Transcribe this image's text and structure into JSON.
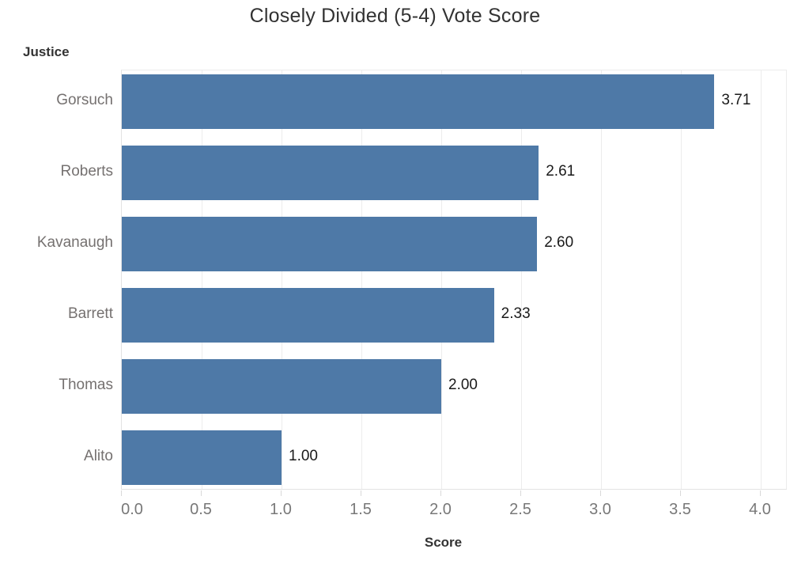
{
  "title": "Closely Divided (5-4) Vote Score",
  "row_header": {
    "label": "Justice",
    "icon": "sort-descending-icon"
  },
  "axis_header": {
    "label": "Score",
    "icon": "sort-descending-icon"
  },
  "colors": {
    "bar": "#4e79a7",
    "title_text": "#323232",
    "header_text": "#333333",
    "category_text": "#757170",
    "value_text": "#1a1a1a",
    "axis_text": "#787878",
    "gridline": "#ececec",
    "pane_border": "#e3e3e3",
    "tick_mark": "#d9d9d9",
    "icon": "#8f8f8f"
  },
  "chart_data": {
    "type": "bar",
    "orientation": "horizontal",
    "title": "Closely Divided (5-4) Vote Score",
    "categories": [
      "Gorsuch",
      "Roberts",
      "Kavanaugh",
      "Barrett",
      "Thomas",
      "Alito"
    ],
    "values": [
      3.71,
      2.61,
      2.6,
      2.33,
      2.0,
      1.0
    ],
    "value_labels": [
      "3.71",
      "2.61",
      "2.60",
      "2.33",
      "2.00",
      "1.00"
    ],
    "xlabel": "Score",
    "ylabel": "Justice",
    "xlim": [
      0.0,
      4.0
    ],
    "xticks": [
      0.0,
      0.5,
      1.0,
      1.5,
      2.0,
      2.5,
      3.0,
      3.5,
      4.0
    ],
    "xtick_labels": [
      "0.0",
      "0.5",
      "1.0",
      "1.5",
      "2.0",
      "2.5",
      "3.0",
      "3.5",
      "4.0"
    ],
    "grid": true,
    "legend": false,
    "sort": "descending"
  }
}
